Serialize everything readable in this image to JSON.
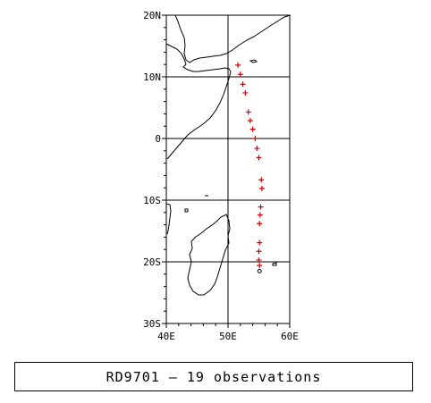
{
  "map": {
    "lon_range": [
      40,
      60
    ],
    "lat_range": [
      -30,
      20
    ],
    "lon_ticks": [
      {
        "value": 40,
        "label": "40E"
      },
      {
        "value": 50,
        "label": "50E"
      },
      {
        "value": 60,
        "label": "60E"
      }
    ],
    "lat_ticks": [
      {
        "value": 20,
        "label": "20N"
      },
      {
        "value": 10,
        "label": "10N"
      },
      {
        "value": 0,
        "label": "0"
      },
      {
        "value": -10,
        "label": "10S"
      },
      {
        "value": -20,
        "label": "20S"
      },
      {
        "value": -30,
        "label": "30S"
      }
    ],
    "grid": true,
    "coast_color": "#000000",
    "track_color": "#d40000",
    "track_marker": "+",
    "end_marker": "o",
    "track_points": [
      [
        51.6,
        11.9
      ],
      [
        52.0,
        10.4
      ],
      [
        52.4,
        8.8
      ],
      [
        52.8,
        7.4
      ],
      [
        53.3,
        4.3
      ],
      [
        53.6,
        2.9
      ],
      [
        54.0,
        1.5
      ],
      [
        54.4,
        0.0
      ],
      [
        54.7,
        -1.6
      ],
      [
        55.0,
        -3.1
      ],
      [
        55.4,
        -6.7
      ],
      [
        55.5,
        -8.1
      ],
      [
        55.3,
        -11.1
      ],
      [
        55.2,
        -12.4
      ],
      [
        55.1,
        -13.8
      ],
      [
        55.1,
        -16.9
      ],
      [
        55.0,
        -18.3
      ],
      [
        55.0,
        -19.7
      ],
      [
        55.1,
        -20.6
      ]
    ],
    "end_point": [
      55.1,
      -21.5
    ]
  },
  "caption": {
    "text": "RD9701 — 19 observations"
  }
}
